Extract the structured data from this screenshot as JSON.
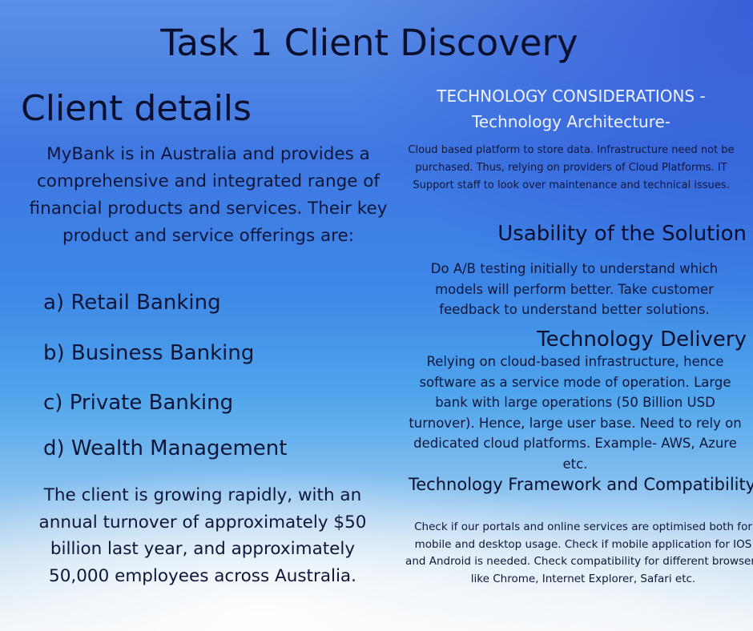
{
  "title": "Task 1 Client Discovery",
  "client": {
    "heading": "Client details",
    "intro": "MyBank is in Australia and provides a comprehensive and integrated range of financial products and services. Their key product and service offerings are:",
    "offerings": [
      "a) Retail Banking",
      "b) Business Banking",
      "c) Private Banking",
      "d) Wealth Management"
    ],
    "growth": "The client is growing rapidly, with an annual turnover of approximately $50 billion last year, and approximately 50,000 employees across Australia."
  },
  "technology": {
    "header_line1": "TECHNOLOGY CONSIDERATIONS -",
    "header_line2": "Technology Architecture-",
    "architecture_body": "Cloud based platform to store data. Infrastructure need not be purchased. Thus, relying on providers of Cloud Platforms. IT Support staff to look over maintenance and technical issues.",
    "usability_heading": "Usability of the Solution",
    "usability_body": "Do A/B testing initially to understand which models will perform better. Take customer feedback to understand better solutions.",
    "delivery_heading": "Technology Delivery",
    "delivery_body": "Relying on cloud-based infrastructure, hence software as a service mode of operation. Large bank with large operations (50 Billion USD turnover). Hence, large user base. Need to rely on dedicated cloud platforms. Example- AWS, Azure etc.",
    "framework_heading": "Technology Framework and Compatibility-",
    "framework_body": "Check if our portals and online services are optimised both for mobile and desktop usage. Check if mobile application for IOS and Android is needed. Check compatibility for different browsers like Chrome, Internet Explorer, Safari etc."
  }
}
